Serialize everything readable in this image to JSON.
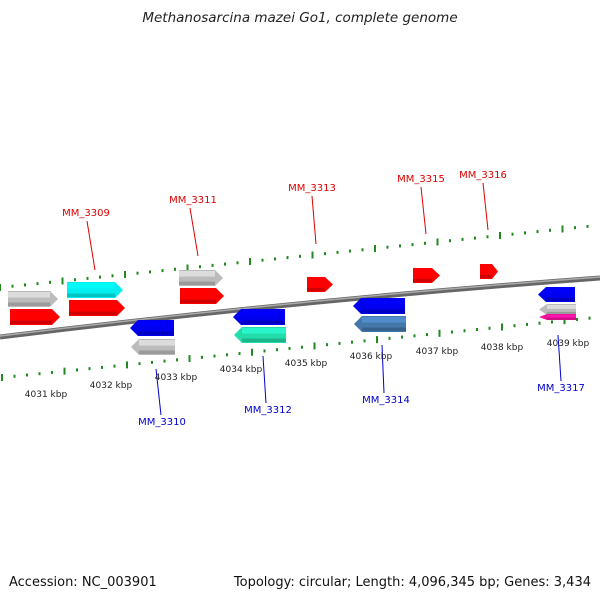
{
  "title": "Methanosarcina mazei Go1, complete genome",
  "footer": {
    "accession": "Accession: NC_003901",
    "info": "Topology: circular; Length: 4,096,345 bp; Genes: 3,434"
  },
  "colors": {
    "red": "#ff0000",
    "blue": "#0000ee",
    "cyan": "#00eeee",
    "grey": "#bbbbbb",
    "aqua": "#22ddaa",
    "steel": "#4477aa",
    "pink": "#ee1199",
    "tick": "#228822",
    "label_top": "#dd0000",
    "label_bottom": "#0000cc"
  },
  "scale_labels": [
    "4031 kbp",
    "4032 kbp",
    "4033 kbp",
    "4034 kbp",
    "4035 kbp",
    "4036 kbp",
    "4037 kbp",
    "4038 kbp",
    "4039 kbp"
  ],
  "gene_labels": {
    "top": [
      "MM_3309",
      "MM_3311",
      "MM_3313",
      "MM_3315",
      "MM_3316"
    ],
    "bottom": [
      "MM_3310",
      "MM_3312",
      "MM_3314",
      "MM_3317"
    ]
  },
  "genes": [
    {
      "strand": "+",
      "color": "grey"
    },
    {
      "strand": "+",
      "color": "red"
    },
    {
      "strand": "+",
      "color": "cyan"
    },
    {
      "strand": "+",
      "color": "red"
    },
    {
      "strand": "+",
      "color": "grey"
    },
    {
      "strand": "+",
      "color": "red"
    },
    {
      "strand": "+",
      "color": "red"
    },
    {
      "strand": "+",
      "color": "red"
    },
    {
      "strand": "+",
      "color": "red"
    },
    {
      "strand": "-",
      "color": "blue"
    },
    {
      "strand": "-",
      "color": "grey"
    },
    {
      "strand": "-",
      "color": "blue"
    },
    {
      "strand": "-",
      "color": "aqua"
    },
    {
      "strand": "-",
      "color": "blue"
    },
    {
      "strand": "-",
      "color": "steel"
    },
    {
      "strand": "-",
      "color": "blue"
    },
    {
      "strand": "-",
      "color": "grey"
    },
    {
      "strand": "-",
      "color": "pink"
    }
  ]
}
